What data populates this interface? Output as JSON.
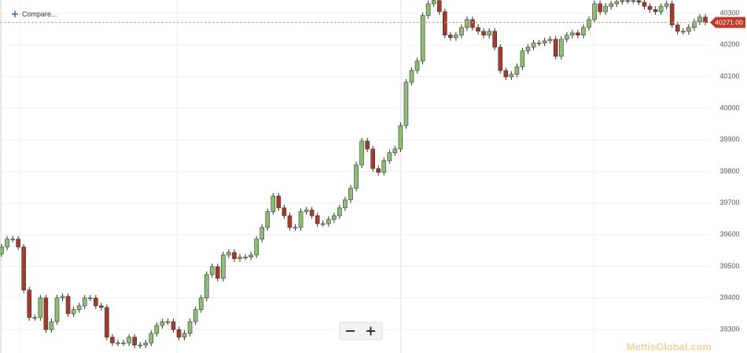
{
  "chart_data": {
    "type": "candlestick",
    "compare_label": "Compare...",
    "last_price_label": "40271.00",
    "watermark": "MettisGlobal.com",
    "up_color": "#8dbf72",
    "down_color": "#a63a2b",
    "ylim": [
      39226,
      40342
    ],
    "yticks": [
      39300,
      39400,
      39500,
      39600,
      39700,
      39800,
      39900,
      40000,
      40100,
      40200,
      40300
    ],
    "grid": true,
    "candles": [
      [
        39540,
        39571,
        39530,
        39561
      ],
      [
        39561,
        39596,
        39551,
        39586
      ],
      [
        39586,
        39596,
        39576,
        39586
      ],
      [
        39586,
        39596,
        39551,
        39561
      ],
      [
        39561,
        39571,
        39415,
        39425
      ],
      [
        39425,
        39435,
        39328,
        39338
      ],
      [
        39338,
        39348,
        39328,
        39338
      ],
      [
        39338,
        39410,
        39328,
        39400
      ],
      [
        39400,
        39410,
        39290,
        39300
      ],
      [
        39300,
        39335,
        39290,
        39325
      ],
      [
        39325,
        39410,
        39315,
        39400
      ],
      [
        39400,
        39415,
        39390,
        39405
      ],
      [
        39405,
        39415,
        39340,
        39350
      ],
      [
        39350,
        39373,
        39340,
        39363
      ],
      [
        39363,
        39385,
        39353,
        39375
      ],
      [
        39375,
        39410,
        39365,
        39400
      ],
      [
        39400,
        39410,
        39390,
        39400
      ],
      [
        39400,
        39410,
        39365,
        39375
      ],
      [
        39375,
        39385,
        39360,
        39370
      ],
      [
        39370,
        39380,
        39266,
        39276
      ],
      [
        39276,
        39286,
        39248,
        39258
      ],
      [
        39258,
        39268,
        39248,
        39258
      ],
      [
        39258,
        39268,
        39248,
        39258
      ],
      [
        39258,
        39286,
        39248,
        39276
      ],
      [
        39276,
        39286,
        39241,
        39251
      ],
      [
        39251,
        39261,
        39241,
        39251
      ],
      [
        39251,
        39268,
        39241,
        39258
      ],
      [
        39258,
        39298,
        39248,
        39288
      ],
      [
        39288,
        39323,
        39278,
        39313
      ],
      [
        39313,
        39335,
        39303,
        39325
      ],
      [
        39325,
        39335,
        39315,
        39325
      ],
      [
        39325,
        39335,
        39290,
        39300
      ],
      [
        39300,
        39310,
        39266,
        39276
      ],
      [
        39276,
        39298,
        39266,
        39288
      ],
      [
        39288,
        39335,
        39278,
        39325
      ],
      [
        39325,
        39373,
        39315,
        39363
      ],
      [
        39363,
        39410,
        39353,
        39400
      ],
      [
        39400,
        39484,
        39390,
        39474
      ],
      [
        39474,
        39509,
        39464,
        39499
      ],
      [
        39499,
        39509,
        39452,
        39462
      ],
      [
        39462,
        39546,
        39452,
        39536
      ],
      [
        39536,
        39554,
        39526,
        39544
      ],
      [
        39544,
        39554,
        39514,
        39524
      ],
      [
        39524,
        39539,
        39514,
        39529
      ],
      [
        39529,
        39539,
        39519,
        39529
      ],
      [
        39529,
        39546,
        39519,
        39536
      ],
      [
        39536,
        39596,
        39526,
        39586
      ],
      [
        39586,
        39633,
        39576,
        39623
      ],
      [
        39623,
        39683,
        39613,
        39673
      ],
      [
        39673,
        39732,
        39663,
        39722
      ],
      [
        39722,
        39732,
        39675,
        39685
      ],
      [
        39685,
        39695,
        39650,
        39660
      ],
      [
        39660,
        39670,
        39613,
        39623
      ],
      [
        39623,
        39633,
        39613,
        39623
      ],
      [
        39623,
        39683,
        39613,
        39673
      ],
      [
        39673,
        39688,
        39663,
        39678
      ],
      [
        39678,
        39688,
        39650,
        39660
      ],
      [
        39660,
        39670,
        39625,
        39635
      ],
      [
        39635,
        39645,
        39625,
        39635
      ],
      [
        39635,
        39658,
        39625,
        39648
      ],
      [
        39648,
        39670,
        39638,
        39660
      ],
      [
        39660,
        39695,
        39650,
        39685
      ],
      [
        39685,
        39720,
        39675,
        39710
      ],
      [
        39710,
        39757,
        39700,
        39747
      ],
      [
        39747,
        39831,
        39737,
        39821
      ],
      [
        39821,
        39906,
        39811,
        39896
      ],
      [
        39896,
        39906,
        39861,
        39871
      ],
      [
        39871,
        39881,
        39799,
        39809
      ],
      [
        39809,
        39819,
        39787,
        39797
      ],
      [
        39797,
        39844,
        39787,
        39834
      ],
      [
        39834,
        39869,
        39824,
        39859
      ],
      [
        39859,
        39881,
        39849,
        39871
      ],
      [
        39871,
        39955,
        39861,
        39945
      ],
      [
        39945,
        40092,
        39935,
        40082
      ],
      [
        40082,
        40129,
        40072,
        40119
      ],
      [
        40119,
        40159,
        40109,
        40149
      ],
      [
        40149,
        40303,
        40139,
        40293
      ],
      [
        40293,
        40340,
        40283,
        40330
      ],
      [
        40330,
        40350,
        40320,
        40340
      ],
      [
        40340,
        40350,
        40295,
        40305
      ],
      [
        40305,
        40315,
        40221,
        40231
      ],
      [
        40231,
        40241,
        40213,
        40223
      ],
      [
        40223,
        40241,
        40213,
        40231
      ],
      [
        40231,
        40265,
        40221,
        40255
      ],
      [
        40255,
        40290,
        40245,
        40280
      ],
      [
        40280,
        40290,
        40245,
        40255
      ],
      [
        40255,
        40265,
        40233,
        40243
      ],
      [
        40243,
        40253,
        40221,
        40231
      ],
      [
        40231,
        40253,
        40221,
        40243
      ],
      [
        40243,
        40253,
        40183,
        40193
      ],
      [
        40193,
        40203,
        40109,
        40119
      ],
      [
        40119,
        40129,
        40089,
        40099
      ],
      [
        40099,
        40117,
        40089,
        40107
      ],
      [
        40107,
        40141,
        40097,
        40131
      ],
      [
        40131,
        40191,
        40121,
        40181
      ],
      [
        40181,
        40203,
        40171,
        40193
      ],
      [
        40193,
        40216,
        40183,
        40206
      ],
      [
        40206,
        40216,
        40196,
        40206
      ],
      [
        40206,
        40223,
        40196,
        40213
      ],
      [
        40213,
        40228,
        40203,
        40218
      ],
      [
        40218,
        40228,
        40154,
        40164
      ],
      [
        40164,
        40228,
        40154,
        40218
      ],
      [
        40218,
        40241,
        40208,
        40231
      ],
      [
        40231,
        40248,
        40221,
        40238
      ],
      [
        40238,
        40248,
        40221,
        40231
      ],
      [
        40231,
        40265,
        40221,
        40255
      ],
      [
        40255,
        40290,
        40245,
        40280
      ],
      [
        40280,
        40340,
        40270,
        40330
      ],
      [
        40330,
        40340,
        40295,
        40305
      ],
      [
        40305,
        40332,
        40295,
        40322
      ],
      [
        40322,
        40340,
        40312,
        40330
      ],
      [
        40330,
        40347,
        40320,
        40337
      ],
      [
        40337,
        40350,
        40327,
        40340
      ],
      [
        40340,
        40350,
        40330,
        40340
      ],
      [
        40340,
        40350,
        40330,
        40340
      ],
      [
        40340,
        40350,
        40325,
        40335
      ],
      [
        40335,
        40345,
        40312,
        40322
      ],
      [
        40322,
        40332,
        40302,
        40312
      ],
      [
        40312,
        40322,
        40295,
        40305
      ],
      [
        40305,
        40332,
        40295,
        40322
      ],
      [
        40322,
        40340,
        40312,
        40330
      ],
      [
        40330,
        40340,
        40253,
        40263
      ],
      [
        40263,
        40273,
        40233,
        40243
      ],
      [
        40243,
        40253,
        40233,
        40243
      ],
      [
        40243,
        40265,
        40233,
        40255
      ],
      [
        40255,
        40283,
        40245,
        40273
      ],
      [
        40273,
        40298,
        40263,
        40288
      ],
      [
        40288,
        40298,
        40261,
        40271
      ]
    ]
  }
}
